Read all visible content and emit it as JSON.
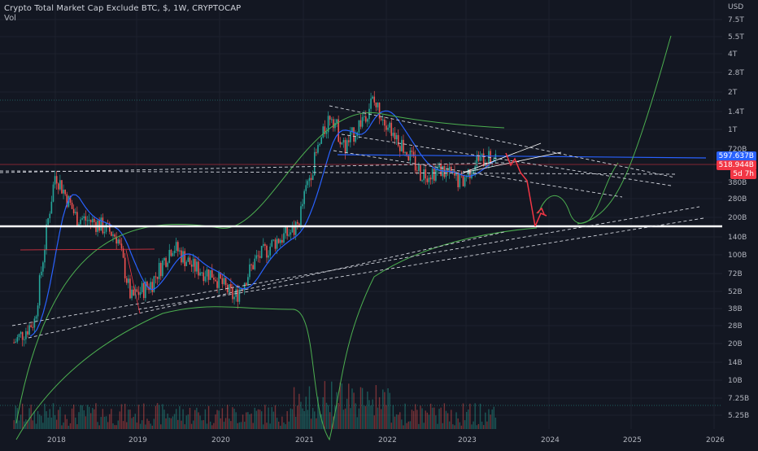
{
  "header": {
    "title": "Crypto Total Market Cap Exclude BTC, $, 1W, CRYPTOCAP",
    "indicator": "Vol"
  },
  "axis": {
    "currency": "USD",
    "y_ticks": [
      "7.5T",
      "5.5T",
      "4T",
      "2.8T",
      "2T",
      "1.4T",
      "1T",
      "720B",
      "380B",
      "280B",
      "200B",
      "140B",
      "100B",
      "72B",
      "52B",
      "38B",
      "28B",
      "20B",
      "14B",
      "10B",
      "7.25B",
      "5.25B"
    ],
    "x_ticks": [
      "2018",
      "2019",
      "2020",
      "2021",
      "2022",
      "2023",
      "2024",
      "2025",
      "2026"
    ]
  },
  "price_tags": [
    {
      "label": "597.637B",
      "color": "#2962ff",
      "name": "current-price-tag"
    },
    {
      "label": "518.944B",
      "color": "#f23645",
      "name": "level-price-tag"
    },
    {
      "label": "5d 7h",
      "color": "#f23645",
      "name": "countdown-tag"
    }
  ],
  "colors": {
    "up": "#26a69a",
    "down": "#ef5350",
    "ma": "#2962ff",
    "band": "#4caf50",
    "support": "#ffffff"
  },
  "chart_data": {
    "type": "candlestick",
    "title": "Crypto Total Market Cap Exclude BTC, $, 1W, CRYPTOCAP",
    "y_scale": "log",
    "y_unit": "USD",
    "x_range": [
      "2017-07",
      "2026-01"
    ],
    "series": [
      {
        "name": "",
        "approx_weekly_close_path": [
          [
            "2017-07",
            20000000000.0
          ],
          [
            "2017-10",
            30000000000.0
          ],
          [
            "2017-12",
            200000000000.0
          ],
          [
            "2018-01",
            450000000000.0
          ],
          [
            "2018-04",
            200000000000.0
          ],
          [
            "2018-07",
            180000000000.0
          ],
          [
            "2018-10",
            140000000000.0
          ],
          [
            "2018-12",
            45000000000.0
          ],
          [
            "2019-03",
            60000000000.0
          ],
          [
            "2019-06",
            120000000000.0
          ],
          [
            "2019-09",
            80000000000.0
          ],
          [
            "2019-12",
            70000000000.0
          ],
          [
            "2020-03",
            45000000000.0
          ],
          [
            "2020-06",
            90000000000.0
          ],
          [
            "2020-09",
            130000000000.0
          ],
          [
            "2020-12",
            160000000000.0
          ],
          [
            "2021-02",
            450000000000.0
          ],
          [
            "2021-05",
            1400000000000.0
          ],
          [
            "2021-07",
            700000000000.0
          ],
          [
            "2021-11",
            1700000000000.0
          ],
          [
            "2022-01",
            1200000000000.0
          ],
          [
            "2022-06",
            450000000000.0
          ],
          [
            "2022-09",
            480000000000.0
          ],
          [
            "2022-12",
            380000000000.0
          ],
          [
            "2023-02",
            560000000000.0
          ],
          [
            "2023-05",
            600000000000.0
          ]
        ]
      }
    ],
    "support_level": 175000000000.0,
    "projection": [
      [
        "2023-06",
        600000000000.0
      ],
      [
        "2023-09",
        400000000000.0
      ],
      [
        "2023-11",
        175000000000.0
      ],
      [
        "2024-01",
        230000000000.0
      ]
    ],
    "grid": true,
    "legend": "none"
  }
}
